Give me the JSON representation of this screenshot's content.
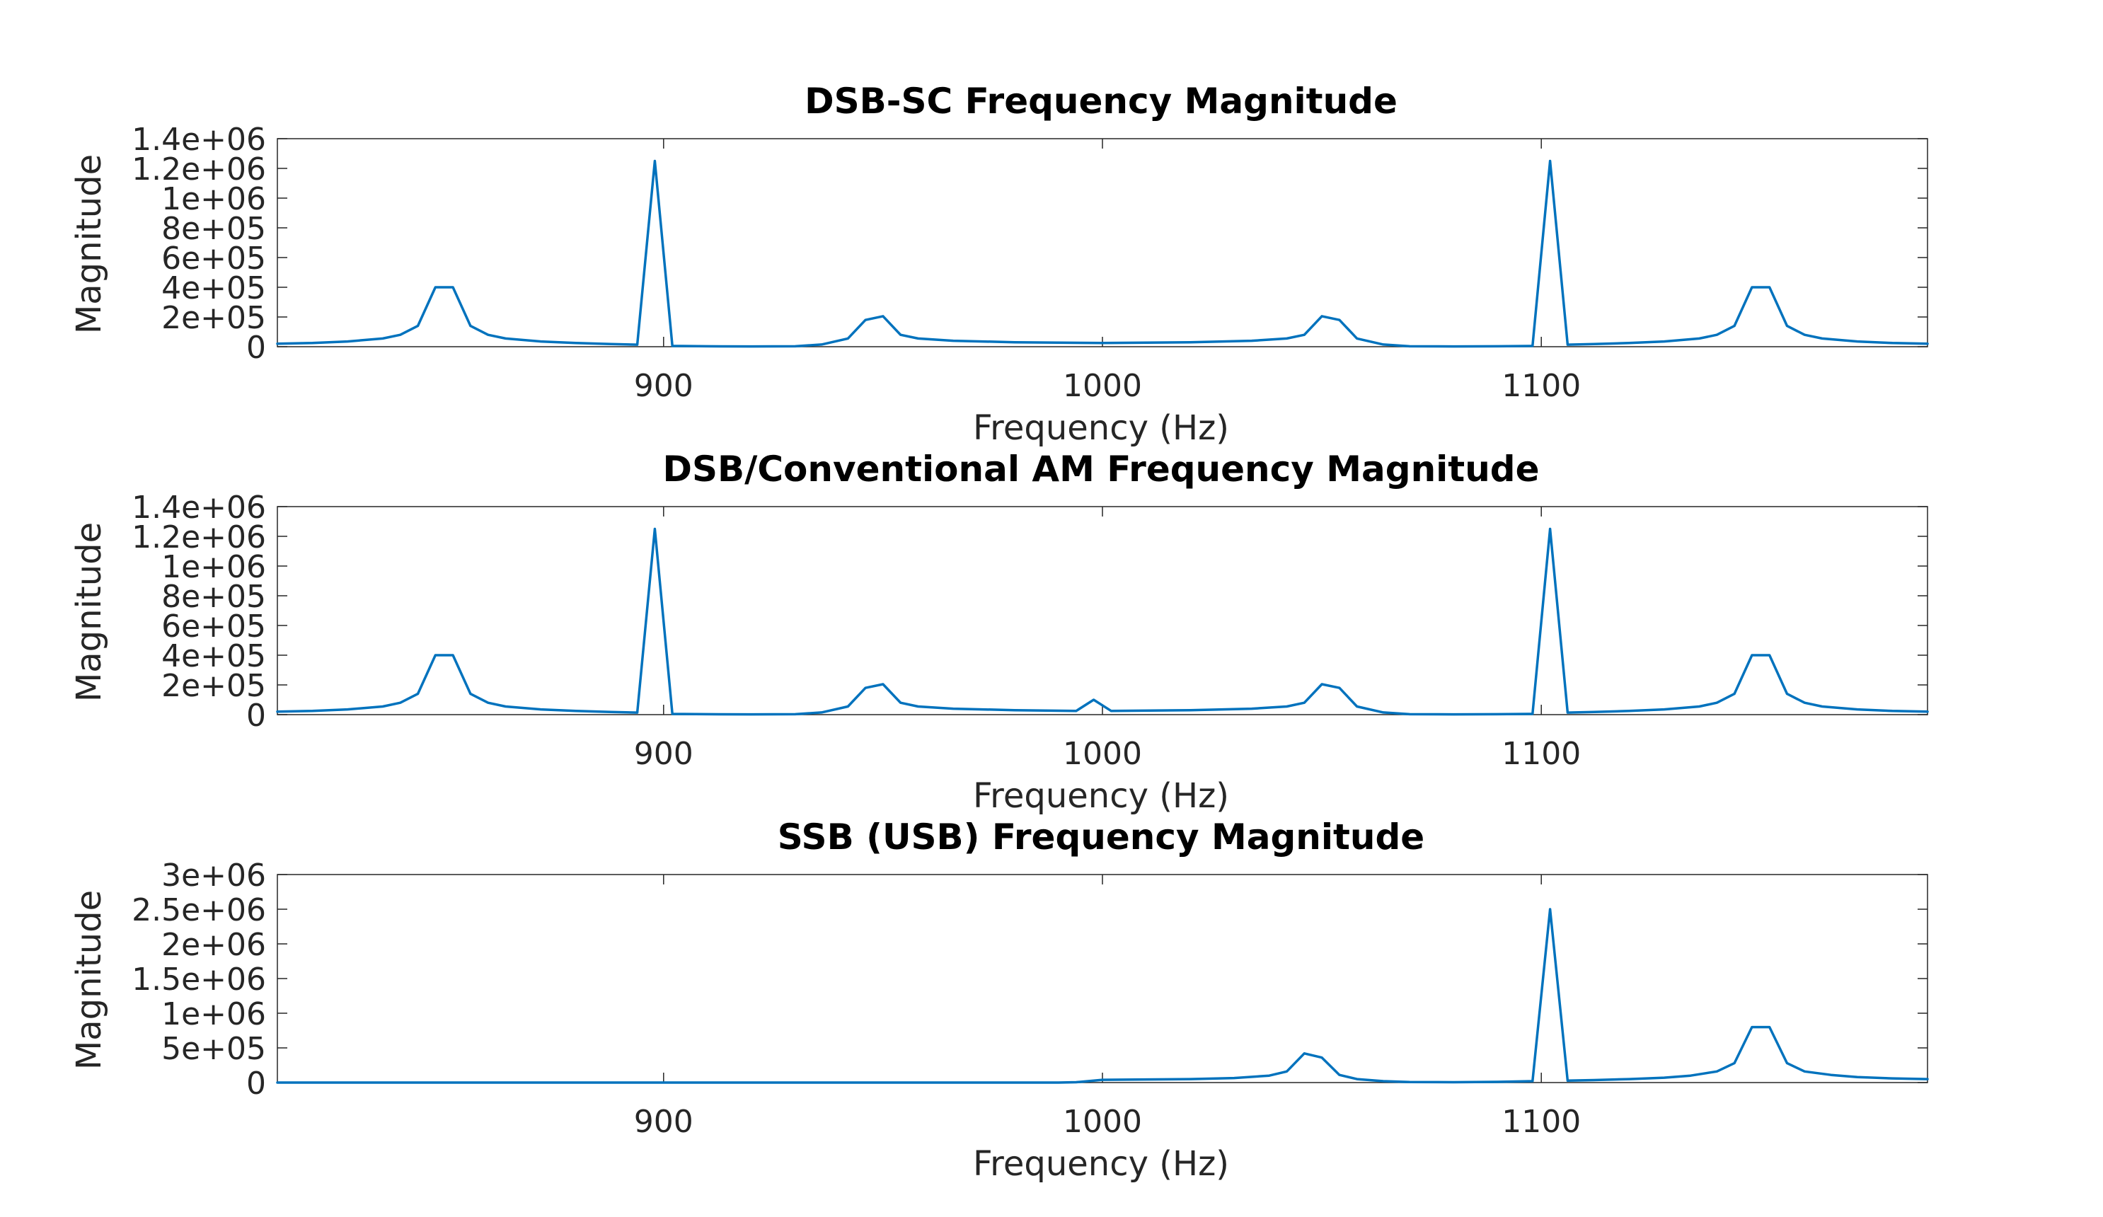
{
  "chart_data": [
    {
      "type": "line",
      "title": "DSB-SC Frequency Magnitude",
      "xlabel": "Frequency (Hz)",
      "ylabel": "Magnitude",
      "xlim": [
        812,
        1188
      ],
      "ylim": [
        0,
        1400000
      ],
      "xticks": [
        900,
        1000,
        1100
      ],
      "xtick_labels": [
        "900",
        "1000",
        "1100"
      ],
      "yticks": [
        0,
        200000,
        400000,
        600000,
        800000,
        1000000,
        1200000,
        1400000
      ],
      "ytick_labels": [
        "0",
        "2e+05",
        "4e+05",
        "6e+05",
        "8e+05",
        "1e+06",
        "1.2e+06",
        "1.4e+06"
      ],
      "grid": false,
      "series": [
        {
          "color": "#0072BD",
          "points": [
            [
              812,
              20000
            ],
            [
              820,
              25000
            ],
            [
              828,
              35000
            ],
            [
              836,
              55000
            ],
            [
              840,
              80000
            ],
            [
              844,
              140000
            ],
            [
              848,
              400000
            ],
            [
              852,
              400000
            ],
            [
              856,
              140000
            ],
            [
              860,
              80000
            ],
            [
              864,
              55000
            ],
            [
              872,
              35000
            ],
            [
              880,
              25000
            ],
            [
              888,
              18000
            ],
            [
              894,
              14000
            ],
            [
              898,
              1250000
            ],
            [
              902,
              5000
            ],
            [
              910,
              3000
            ],
            [
              920,
              2000
            ],
            [
              930,
              3000
            ],
            [
              936,
              15000
            ],
            [
              942,
              55000
            ],
            [
              946,
              180000
            ],
            [
              950,
              205000
            ],
            [
              954,
              80000
            ],
            [
              958,
              55000
            ],
            [
              966,
              40000
            ],
            [
              980,
              30000
            ],
            [
              1000,
              25000
            ],
            [
              1020,
              30000
            ],
            [
              1034,
              40000
            ],
            [
              1042,
              55000
            ],
            [
              1046,
              80000
            ],
            [
              1050,
              205000
            ],
            [
              1054,
              180000
            ],
            [
              1058,
              55000
            ],
            [
              1064,
              15000
            ],
            [
              1070,
              3000
            ],
            [
              1080,
              2000
            ],
            [
              1090,
              3000
            ],
            [
              1098,
              5000
            ],
            [
              1102,
              1250000
            ],
            [
              1106,
              14000
            ],
            [
              1112,
              18000
            ],
            [
              1120,
              25000
            ],
            [
              1128,
              35000
            ],
            [
              1136,
              55000
            ],
            [
              1140,
              80000
            ],
            [
              1144,
              140000
            ],
            [
              1148,
              400000
            ],
            [
              1152,
              400000
            ],
            [
              1156,
              140000
            ],
            [
              1160,
              80000
            ],
            [
              1164,
              55000
            ],
            [
              1172,
              35000
            ],
            [
              1180,
              25000
            ],
            [
              1188,
              20000
            ]
          ]
        }
      ]
    },
    {
      "type": "line",
      "title": "DSB/Conventional AM Frequency Magnitude",
      "xlabel": "Frequency (Hz)",
      "ylabel": "Magnitude",
      "xlim": [
        812,
        1188
      ],
      "ylim": [
        0,
        1400000
      ],
      "xticks": [
        900,
        1000,
        1100
      ],
      "xtick_labels": [
        "900",
        "1000",
        "1100"
      ],
      "yticks": [
        0,
        200000,
        400000,
        600000,
        800000,
        1000000,
        1200000,
        1400000
      ],
      "ytick_labels": [
        "0",
        "2e+05",
        "4e+05",
        "6e+05",
        "8e+05",
        "1e+06",
        "1.2e+06",
        "1.4e+06"
      ],
      "grid": false,
      "series": [
        {
          "color": "#0072BD",
          "points": [
            [
              812,
              20000
            ],
            [
              820,
              25000
            ],
            [
              828,
              35000
            ],
            [
              836,
              55000
            ],
            [
              840,
              80000
            ],
            [
              844,
              140000
            ],
            [
              848,
              400000
            ],
            [
              852,
              400000
            ],
            [
              856,
              140000
            ],
            [
              860,
              80000
            ],
            [
              864,
              55000
            ],
            [
              872,
              35000
            ],
            [
              880,
              25000
            ],
            [
              888,
              18000
            ],
            [
              894,
              14000
            ],
            [
              898,
              1250000
            ],
            [
              902,
              5000
            ],
            [
              910,
              3000
            ],
            [
              920,
              2000
            ],
            [
              930,
              3000
            ],
            [
              936,
              15000
            ],
            [
              942,
              55000
            ],
            [
              946,
              180000
            ],
            [
              950,
              205000
            ],
            [
              954,
              80000
            ],
            [
              958,
              55000
            ],
            [
              966,
              40000
            ],
            [
              980,
              30000
            ],
            [
              994,
              25000
            ],
            [
              998,
              100000
            ],
            [
              1002,
              25000
            ],
            [
              1020,
              30000
            ],
            [
              1034,
              40000
            ],
            [
              1042,
              55000
            ],
            [
              1046,
              80000
            ],
            [
              1050,
              205000
            ],
            [
              1054,
              180000
            ],
            [
              1058,
              55000
            ],
            [
              1064,
              15000
            ],
            [
              1070,
              3000
            ],
            [
              1080,
              2000
            ],
            [
              1090,
              3000
            ],
            [
              1098,
              5000
            ],
            [
              1102,
              1250000
            ],
            [
              1106,
              14000
            ],
            [
              1112,
              18000
            ],
            [
              1120,
              25000
            ],
            [
              1128,
              35000
            ],
            [
              1136,
              55000
            ],
            [
              1140,
              80000
            ],
            [
              1144,
              140000
            ],
            [
              1148,
              400000
            ],
            [
              1152,
              400000
            ],
            [
              1156,
              140000
            ],
            [
              1160,
              80000
            ],
            [
              1164,
              55000
            ],
            [
              1172,
              35000
            ],
            [
              1180,
              25000
            ],
            [
              1188,
              20000
            ]
          ]
        }
      ]
    },
    {
      "type": "line",
      "title": "SSB (USB) Frequency Magnitude",
      "xlabel": "Frequency (Hz)",
      "ylabel": "Magnitude",
      "xlim": [
        812,
        1188
      ],
      "ylim": [
        0,
        3000000
      ],
      "xticks": [
        900,
        1000,
        1100
      ],
      "xtick_labels": [
        "900",
        "1000",
        "1100"
      ],
      "yticks": [
        0,
        500000,
        1000000,
        1500000,
        2000000,
        2500000,
        3000000
      ],
      "ytick_labels": [
        "0",
        "5e+05",
        "1e+06",
        "1.5e+06",
        "2e+06",
        "2.5e+06",
        "3e+06"
      ],
      "grid": false,
      "series": [
        {
          "color": "#0072BD",
          "points": [
            [
              812,
              0
            ],
            [
              900,
              0
            ],
            [
              990,
              0
            ],
            [
              994,
              5000
            ],
            [
              1000,
              40000
            ],
            [
              1010,
              45000
            ],
            [
              1020,
              50000
            ],
            [
              1030,
              65000
            ],
            [
              1038,
              100000
            ],
            [
              1042,
              160000
            ],
            [
              1046,
              420000
            ],
            [
              1050,
              360000
            ],
            [
              1054,
              110000
            ],
            [
              1058,
              50000
            ],
            [
              1064,
              20000
            ],
            [
              1070,
              8000
            ],
            [
              1080,
              5000
            ],
            [
              1090,
              10000
            ],
            [
              1098,
              20000
            ],
            [
              1102,
              2500000
            ],
            [
              1106,
              28000
            ],
            [
              1112,
              36000
            ],
            [
              1120,
              50000
            ],
            [
              1128,
              70000
            ],
            [
              1134,
              100000
            ],
            [
              1140,
              160000
            ],
            [
              1144,
              280000
            ],
            [
              1148,
              800000
            ],
            [
              1152,
              800000
            ],
            [
              1156,
              280000
            ],
            [
              1160,
              160000
            ],
            [
              1166,
              110000
            ],
            [
              1172,
              80000
            ],
            [
              1180,
              60000
            ],
            [
              1188,
              50000
            ]
          ]
        }
      ]
    }
  ]
}
